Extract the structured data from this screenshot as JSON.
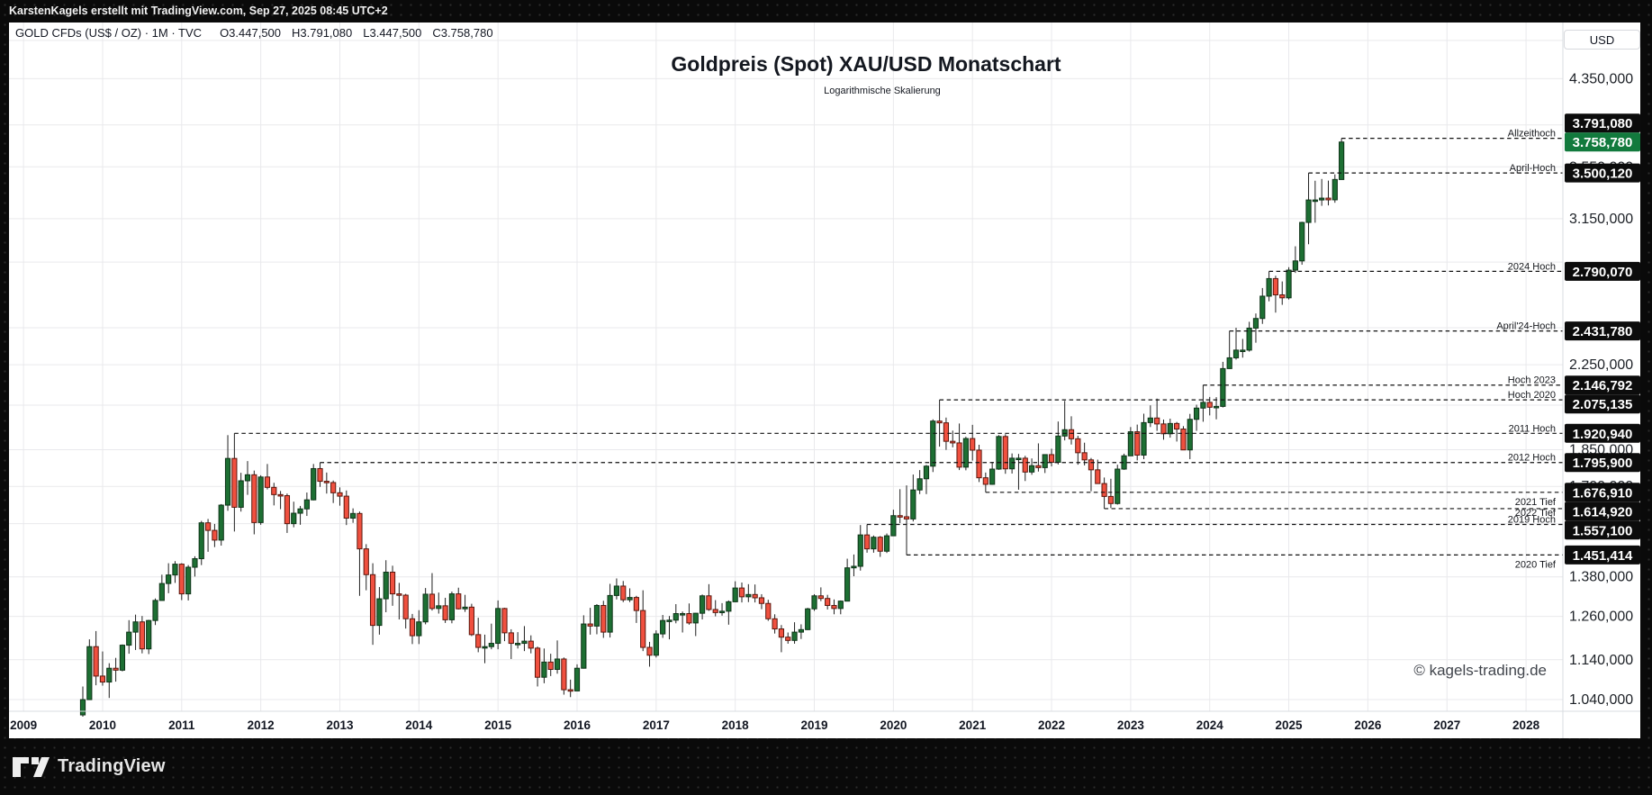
{
  "top_bar": {
    "attribution": "KarstenKagels erstellt mit TradingView.com, Sep 27, 2025 08:45 UTC+2"
  },
  "symbol_bar": {
    "symbol": "GOLD CFDs (US$ / OZ) · 1M · TVC",
    "open": "O3.447,500",
    "high": "H3.791,080",
    "low": "L3.447,500",
    "close": "C3.758,780"
  },
  "header": {
    "title": "Goldpreis (Spot) XAU/USD Monatschart",
    "subtitle": "Logarithmische Skalierung"
  },
  "price_axis": {
    "currency_button": "USD",
    "labels": [
      {
        "text": "4.350,000",
        "value": 4350
      },
      {
        "text": "3.550,000",
        "value": 3550
      },
      {
        "text": "3.150,000",
        "value": 3150
      },
      {
        "text": "2.250,000",
        "value": 2250
      },
      {
        "text": "1.850,000",
        "value": 1850
      },
      {
        "text": "1.700,000",
        "value": 1700
      },
      {
        "text": "1.380,000",
        "value": 1380
      },
      {
        "text": "1.260,000",
        "value": 1260
      },
      {
        "text": "1.140,000",
        "value": 1140
      },
      {
        "text": "1.040,000",
        "value": 1040
      }
    ],
    "badges": [
      {
        "text": "3.791,080",
        "value": 3791.08,
        "style": "black"
      },
      {
        "text": "3.758,780",
        "value": 3758.78,
        "style": "current"
      },
      {
        "text": "3.500,120",
        "value": 3500.12,
        "style": "black"
      },
      {
        "text": "2.790,070",
        "value": 2790.07,
        "style": "black"
      },
      {
        "text": "2.431,780",
        "value": 2431.78,
        "style": "black"
      },
      {
        "text": "2.146,792",
        "value": 2146.792,
        "style": "black"
      },
      {
        "text": "2.075,135",
        "value": 2075.135,
        "style": "black"
      },
      {
        "text": "1.920,940",
        "value": 1920.94,
        "style": "black"
      },
      {
        "text": "1.795,900",
        "value": 1795.9,
        "style": "black"
      },
      {
        "text": "1.676,910",
        "value": 1676.91,
        "style": "black"
      },
      {
        "text": "1.614,920",
        "value": 1614.92,
        "style": "black"
      },
      {
        "text": "1.557,100",
        "value": 1557.1,
        "style": "black"
      },
      {
        "text": "1.451,414",
        "value": 1451.414,
        "style": "black"
      }
    ]
  },
  "time_axis": {
    "years": [
      "2009",
      "2010",
      "2011",
      "2012",
      "2013",
      "2014",
      "2015",
      "2016",
      "2017",
      "2018",
      "2019",
      "2020",
      "2021",
      "2022",
      "2023",
      "2024",
      "2025",
      "2026",
      "2027",
      "2028"
    ]
  },
  "annotations": [
    {
      "label": "Allzeithoch",
      "value": 3791.08,
      "from": "2025-09",
      "kind": "high"
    },
    {
      "label": "April-Hoch",
      "value": 3500.12,
      "from": "2025-04",
      "kind": "high"
    },
    {
      "label": "2024 Hoch",
      "value": 2790.07,
      "from": "2024-10",
      "kind": "high"
    },
    {
      "label": "April'24-Hoch",
      "value": 2431.78,
      "from": "2024-04",
      "kind": "high"
    },
    {
      "label": "Hoch 2023",
      "value": 2146.792,
      "from": "2023-12",
      "kind": "high"
    },
    {
      "label": "Hoch 2020",
      "value": 2075.135,
      "from": "2020-08",
      "kind": "high"
    },
    {
      "label": "2011 Hoch",
      "value": 1920.94,
      "from": "2011-09",
      "kind": "high"
    },
    {
      "label": "2012 Hoch",
      "value": 1795.9,
      "from": "2012-10",
      "kind": "high"
    },
    {
      "label": "2021 Tief",
      "value": 1676.91,
      "from": "2021-03",
      "kind": "low"
    },
    {
      "label": "2022 Tief",
      "value": 1614.92,
      "from": "2022-09",
      "kind": "low"
    },
    {
      "label": "2019 Hoch",
      "value": 1557.1,
      "from": "2019-09",
      "kind": "high"
    },
    {
      "label": "2020 Tief",
      "value": 1451.414,
      "from": "2020-03",
      "kind": "low"
    }
  ],
  "watermark": "© kagels-trading.de",
  "footer": {
    "brand": "TradingView"
  },
  "colors": {
    "up": "#1d6f33",
    "up_border": "#0e3318",
    "down": "#f0503f",
    "down_border": "#5a170d",
    "wick": "#1f1f1f",
    "badge_black": "#0c0c0c",
    "badge_green": "#127a3d",
    "dashed": "#111111",
    "grid": "#e9e9ec",
    "separator": "#d9dce0",
    "axis_text": "#1c2026",
    "panel": "#ffffff"
  },
  "chart_data": {
    "type": "candlestick",
    "title": "Goldpreis (Spot) XAU/USD Monatschart",
    "symbol": "GOLD CFDs (US$ / OZ) XAU/USD",
    "timeframe": "1M",
    "scale": "logarithmic",
    "unit": "USD",
    "start_month": "2009-10",
    "end_month": "2025-09",
    "current_price": 3758.78,
    "current_ohlc": {
      "o": 3447.5,
      "h": 3791.08,
      "l": 3447.5,
      "c": 3758.78
    },
    "x_tick_years": [
      2009,
      2010,
      2011,
      2012,
      2013,
      2014,
      2015,
      2016,
      2017,
      2018,
      2019,
      2020,
      2021,
      2022,
      2023,
      2024,
      2025,
      2026,
      2027,
      2028
    ],
    "y_axis_visible_labels": [
      4350,
      3550,
      3150,
      2250,
      1850,
      1700,
      1380,
      1260,
      1140,
      1040
    ],
    "y_gridlines": [
      4750,
      4350,
      3910,
      3550,
      3150,
      2850,
      2450,
      2250,
      2050,
      1850,
      1700,
      1560,
      1380,
      1260,
      1140,
      1040
    ],
    "ylim": [
      1000,
      4900
    ],
    "marked_levels": [
      3791.08,
      3500.12,
      2790.07,
      2431.78,
      2146.792,
      2075.135,
      1920.94,
      1795.9,
      1676.91,
      1614.92,
      1557.1,
      1451.414
    ],
    "candles_ohlc": [
      [
        1004,
        1072,
        1000,
        1040
      ],
      [
        1040,
        1195,
        1040,
        1175
      ],
      [
        1175,
        1218,
        1075,
        1098
      ],
      [
        1098,
        1162,
        1074,
        1083
      ],
      [
        1083,
        1131,
        1044,
        1118
      ],
      [
        1118,
        1145,
        1084,
        1113
      ],
      [
        1113,
        1181,
        1110,
        1179
      ],
      [
        1179,
        1249,
        1156,
        1215
      ],
      [
        1215,
        1265,
        1166,
        1244
      ],
      [
        1244,
        1261,
        1157,
        1169
      ],
      [
        1169,
        1250,
        1155,
        1248
      ],
      [
        1248,
        1313,
        1235,
        1307
      ],
      [
        1307,
        1387,
        1307,
        1359
      ],
      [
        1359,
        1424,
        1329,
        1386
      ],
      [
        1386,
        1431,
        1361,
        1421
      ],
      [
        1421,
        1424,
        1308,
        1327
      ],
      [
        1327,
        1418,
        1307,
        1411
      ],
      [
        1411,
        1447,
        1381,
        1439
      ],
      [
        1439,
        1570,
        1418,
        1563
      ],
      [
        1563,
        1577,
        1462,
        1536
      ],
      [
        1536,
        1559,
        1478,
        1502
      ],
      [
        1502,
        1632,
        1483,
        1628
      ],
      [
        1628,
        1913,
        1607,
        1813
      ],
      [
        1813,
        1921,
        1532,
        1620
      ],
      [
        1620,
        1754,
        1604,
        1722
      ],
      [
        1722,
        1802,
        1667,
        1746
      ],
      [
        1746,
        1763,
        1522,
        1564
      ],
      [
        1564,
        1744,
        1556,
        1737
      ],
      [
        1737,
        1790,
        1688,
        1696
      ],
      [
        1696,
        1714,
        1627,
        1668
      ],
      [
        1668,
        1682,
        1613,
        1664
      ],
      [
        1664,
        1672,
        1527,
        1560
      ],
      [
        1560,
        1641,
        1547,
        1598
      ],
      [
        1598,
        1625,
        1556,
        1614
      ],
      [
        1614,
        1676,
        1588,
        1648
      ],
      [
        1648,
        1790,
        1646,
        1771
      ],
      [
        1771,
        1796,
        1698,
        1720
      ],
      [
        1720,
        1755,
        1672,
        1715
      ],
      [
        1715,
        1723,
        1636,
        1675
      ],
      [
        1675,
        1696,
        1626,
        1662
      ],
      [
        1662,
        1684,
        1555,
        1580
      ],
      [
        1580,
        1616,
        1563,
        1597
      ],
      [
        1597,
        1604,
        1321,
        1472
      ],
      [
        1472,
        1488,
        1338,
        1387
      ],
      [
        1387,
        1424,
        1180,
        1234
      ],
      [
        1234,
        1348,
        1208,
        1312
      ],
      [
        1312,
        1434,
        1272,
        1395
      ],
      [
        1395,
        1416,
        1291,
        1327
      ],
      [
        1327,
        1361,
        1251,
        1323
      ],
      [
        1323,
        1327,
        1225,
        1253
      ],
      [
        1253,
        1267,
        1182,
        1205
      ],
      [
        1205,
        1278,
        1182,
        1244
      ],
      [
        1244,
        1345,
        1237,
        1326
      ],
      [
        1326,
        1392,
        1277,
        1283
      ],
      [
        1283,
        1331,
        1268,
        1291
      ],
      [
        1291,
        1315,
        1241,
        1250
      ],
      [
        1250,
        1334,
        1240,
        1327
      ],
      [
        1327,
        1346,
        1280,
        1282
      ],
      [
        1282,
        1324,
        1273,
        1287
      ],
      [
        1287,
        1297,
        1204,
        1208
      ],
      [
        1208,
        1256,
        1160,
        1173
      ],
      [
        1173,
        1208,
        1131,
        1175
      ],
      [
        1175,
        1239,
        1168,
        1184
      ],
      [
        1184,
        1307,
        1168,
        1283
      ],
      [
        1283,
        1285,
        1190,
        1213
      ],
      [
        1213,
        1223,
        1142,
        1184
      ],
      [
        1184,
        1215,
        1170,
        1184
      ],
      [
        1184,
        1232,
        1163,
        1190
      ],
      [
        1190,
        1206,
        1157,
        1171
      ],
      [
        1171,
        1175,
        1072,
        1095
      ],
      [
        1095,
        1170,
        1080,
        1134
      ],
      [
        1134,
        1156,
        1098,
        1115
      ],
      [
        1115,
        1192,
        1104,
        1142
      ],
      [
        1142,
        1146,
        1052,
        1064
      ],
      [
        1064,
        1089,
        1046,
        1061
      ],
      [
        1061,
        1128,
        1061,
        1118
      ],
      [
        1118,
        1263,
        1117,
        1238
      ],
      [
        1238,
        1285,
        1208,
        1232
      ],
      [
        1232,
        1296,
        1209,
        1292
      ],
      [
        1292,
        1306,
        1199,
        1215
      ],
      [
        1215,
        1358,
        1200,
        1322
      ],
      [
        1322,
        1375,
        1310,
        1351
      ],
      [
        1351,
        1367,
        1302,
        1309
      ],
      [
        1309,
        1344,
        1302,
        1316
      ],
      [
        1316,
        1321,
        1241,
        1277
      ],
      [
        1277,
        1338,
        1163,
        1173
      ],
      [
        1173,
        1188,
        1122,
        1152
      ],
      [
        1152,
        1220,
        1146,
        1210
      ],
      [
        1210,
        1264,
        1199,
        1248
      ],
      [
        1248,
        1261,
        1195,
        1249
      ],
      [
        1249,
        1296,
        1240,
        1268
      ],
      [
        1268,
        1274,
        1214,
        1268
      ],
      [
        1268,
        1298,
        1236,
        1241
      ],
      [
        1241,
        1270,
        1204,
        1269
      ],
      [
        1269,
        1325,
        1251,
        1321
      ],
      [
        1321,
        1357,
        1276,
        1280
      ],
      [
        1280,
        1308,
        1260,
        1271
      ],
      [
        1271,
        1299,
        1262,
        1275
      ],
      [
        1275,
        1307,
        1236,
        1303
      ],
      [
        1303,
        1366,
        1302,
        1345
      ],
      [
        1345,
        1362,
        1301,
        1318
      ],
      [
        1318,
        1357,
        1302,
        1325
      ],
      [
        1325,
        1356,
        1301,
        1315
      ],
      [
        1315,
        1326,
        1281,
        1298
      ],
      [
        1298,
        1309,
        1247,
        1253
      ],
      [
        1253,
        1266,
        1211,
        1224
      ],
      [
        1224,
        1235,
        1160,
        1201
      ],
      [
        1201,
        1214,
        1183,
        1192
      ],
      [
        1192,
        1243,
        1183,
        1215
      ],
      [
        1215,
        1237,
        1196,
        1222
      ],
      [
        1222,
        1285,
        1221,
        1282
      ],
      [
        1282,
        1326,
        1276,
        1321
      ],
      [
        1321,
        1347,
        1305,
        1313
      ],
      [
        1313,
        1324,
        1280,
        1292
      ],
      [
        1292,
        1310,
        1266,
        1283
      ],
      [
        1283,
        1307,
        1266,
        1305
      ],
      [
        1305,
        1439,
        1305,
        1409
      ],
      [
        1409,
        1453,
        1382,
        1414
      ],
      [
        1414,
        1555,
        1400,
        1520
      ],
      [
        1520,
        1557,
        1459,
        1472
      ],
      [
        1472,
        1518,
        1459,
        1512
      ],
      [
        1512,
        1516,
        1445,
        1464
      ],
      [
        1464,
        1525,
        1458,
        1517
      ],
      [
        1517,
        1611,
        1517,
        1589
      ],
      [
        1589,
        1689,
        1562,
        1585
      ],
      [
        1585,
        1704,
        1451,
        1577
      ],
      [
        1577,
        1747,
        1568,
        1686
      ],
      [
        1686,
        1765,
        1670,
        1730
      ],
      [
        1730,
        1786,
        1670,
        1781
      ],
      [
        1781,
        1984,
        1757,
        1976
      ],
      [
        1976,
        2075,
        1863,
        1968
      ],
      [
        1968,
        1992,
        1849,
        1886
      ],
      [
        1886,
        1933,
        1860,
        1879
      ],
      [
        1879,
        1965,
        1765,
        1777
      ],
      [
        1777,
        1906,
        1764,
        1898
      ],
      [
        1898,
        1959,
        1804,
        1848
      ],
      [
        1848,
        1871,
        1717,
        1734
      ],
      [
        1734,
        1755,
        1677,
        1708
      ],
      [
        1708,
        1798,
        1706,
        1769
      ],
      [
        1769,
        1913,
        1766,
        1907
      ],
      [
        1907,
        1917,
        1750,
        1770
      ],
      [
        1770,
        1834,
        1751,
        1814
      ],
      [
        1814,
        1832,
        1687,
        1814
      ],
      [
        1814,
        1824,
        1721,
        1757
      ],
      [
        1757,
        1813,
        1746,
        1783
      ],
      [
        1783,
        1877,
        1759,
        1775
      ],
      [
        1775,
        1830,
        1753,
        1829
      ],
      [
        1829,
        1854,
        1780,
        1797
      ],
      [
        1797,
        1974,
        1788,
        1909
      ],
      [
        1909,
        2070,
        1890,
        1937
      ],
      [
        1937,
        1998,
        1872,
        1897
      ],
      [
        1897,
        1910,
        1787,
        1837
      ],
      [
        1837,
        1880,
        1784,
        1807
      ],
      [
        1807,
        1815,
        1681,
        1766
      ],
      [
        1766,
        1808,
        1710,
        1711
      ],
      [
        1711,
        1735,
        1615,
        1661
      ],
      [
        1661,
        1730,
        1617,
        1634
      ],
      [
        1634,
        1787,
        1630,
        1769
      ],
      [
        1769,
        1833,
        1766,
        1824
      ],
      [
        1824,
        1949,
        1823,
        1928
      ],
      [
        1928,
        1960,
        1805,
        1827
      ],
      [
        1827,
        2010,
        1810,
        1969
      ],
      [
        1969,
        2049,
        1949,
        1990
      ],
      [
        1990,
        2081,
        1932,
        1963
      ],
      [
        1963,
        1983,
        1893,
        1919
      ],
      [
        1919,
        1987,
        1902,
        1965
      ],
      [
        1965,
        1972,
        1885,
        1940
      ],
      [
        1940,
        1953,
        1848,
        1849
      ],
      [
        1849,
        2009,
        1810,
        1984
      ],
      [
        1984,
        2052,
        1932,
        2036
      ],
      [
        2036,
        2147,
        1973,
        2063
      ],
      [
        2063,
        2089,
        2002,
        2040
      ],
      [
        2040,
        2088,
        1984,
        2044
      ],
      [
        2044,
        2265,
        2039,
        2230
      ],
      [
        2230,
        2432,
        2229,
        2286
      ],
      [
        2286,
        2450,
        2277,
        2327
      ],
      [
        2327,
        2388,
        2287,
        2327
      ],
      [
        2327,
        2484,
        2319,
        2448
      ],
      [
        2448,
        2532,
        2367,
        2503
      ],
      [
        2503,
        2685,
        2472,
        2635
      ],
      [
        2635,
        2790,
        2604,
        2744
      ],
      [
        2744,
        2762,
        2537,
        2643
      ],
      [
        2643,
        2726,
        2583,
        2625
      ],
      [
        2625,
        2817,
        2615,
        2798
      ],
      [
        2798,
        2956,
        2780,
        2858
      ],
      [
        2858,
        3128,
        2833,
        3123
      ],
      [
        3123,
        3500,
        2970,
        3289
      ],
      [
        3289,
        3438,
        3121,
        3289
      ],
      [
        3289,
        3452,
        3245,
        3303
      ],
      [
        3303,
        3439,
        3248,
        3290
      ],
      [
        3290,
        3489,
        3268,
        3448
      ],
      [
        3447.5,
        3791.08,
        3447.5,
        3758.78
      ]
    ]
  }
}
